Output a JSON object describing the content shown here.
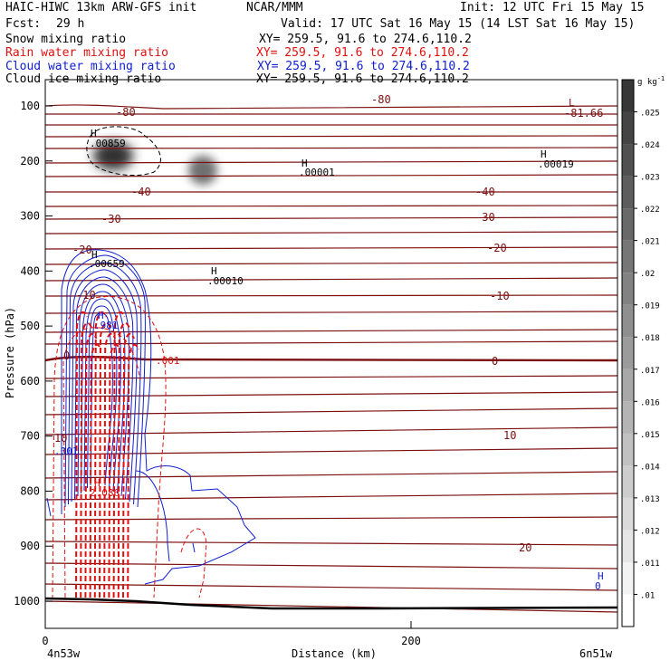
{
  "header": {
    "model": "HAIC-HIWC 13km ARW-GFS init",
    "org": "NCAR/MMM",
    "init": "Init: 12 UTC Fri 15 May 15",
    "fcst_label": "Fcst:",
    "fcst_value": "29 h",
    "valid": "Valid: 17 UTC Sat 16 May 15 (14 LST Sat 16 May 15)"
  },
  "fields": [
    {
      "label": "Snow mixing ratio",
      "xy": "XY= 259.5, 91.6 to 274.6,110.2",
      "color": "#000000"
    },
    {
      "label": "Rain water mixing ratio",
      "xy": "XY= 259.5, 91.6 to 274.6,110.2",
      "color": "#e01010"
    },
    {
      "label": "Cloud water mixing ratio",
      "xy": "XY= 259.5, 91.6 to 274.6,110.2",
      "color": "#1020d0"
    },
    {
      "label": "Cloud ice mixing ratio",
      "xy": "XY= 259.5, 91.6 to 274.6,110.2",
      "color": "#000000"
    }
  ],
  "chart_data": {
    "type": "contour",
    "ylabel": "Pressure (hPa)",
    "xlabel": "Distance (km)",
    "y_ticks": [
      100,
      200,
      300,
      400,
      500,
      600,
      700,
      800,
      900,
      1000
    ],
    "x_ticks": [
      0,
      200
    ],
    "x_end_labels": [
      "4n53w",
      "6n51w"
    ],
    "colorbar": {
      "unit": "g kg",
      "unit_exp": "-1",
      "ticks": [
        ".01",
        ".011",
        ".012",
        ".013",
        ".014",
        ".015",
        ".016",
        ".017",
        ".018",
        ".019",
        ".02",
        ".021",
        ".022",
        ".023",
        ".024",
        ".025"
      ]
    },
    "temperature_labels": [
      "-80",
      "-81.66",
      "-40",
      "-30",
      "-20",
      "-10",
      "0",
      "10",
      "20"
    ],
    "extrema": [
      {
        "letter": "H",
        "value": ".00859"
      },
      {
        "letter": "H",
        "value": ".00001"
      },
      {
        "letter": "H",
        "value": ".00019"
      },
      {
        "letter": "H",
        "value": ".00010"
      },
      {
        "letter": "H",
        "value": ".00659"
      },
      {
        "letter": "H",
        "value": ".981"
      },
      {
        "letter": "H",
        "value": "2.086"
      },
      {
        "letter": "H",
        "value": "0"
      },
      {
        "letter": "L",
        "value": "-81.66"
      }
    ],
    "contour_values": [
      ".001",
      ".001"
    ]
  }
}
